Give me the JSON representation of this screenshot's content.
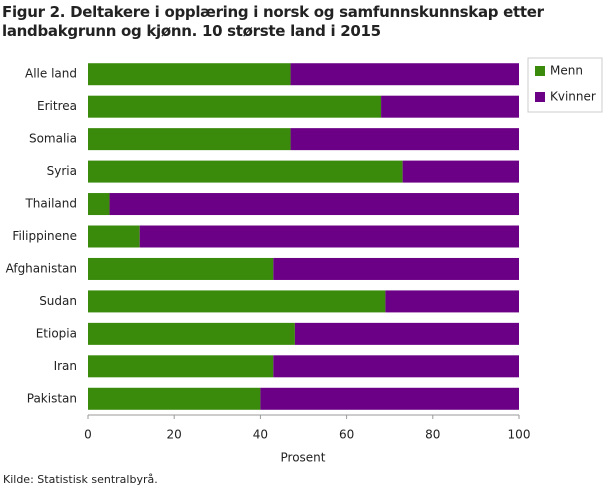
{
  "chart_data": {
    "type": "stacked_barh",
    "title": "Figur 2. Deltakere i opplæring i norsk og samfunnskunnskap etter landbakgrunn og kjønn. 10 største land i 2015",
    "categories": [
      "Alle land",
      "Eritrea",
      "Somalia",
      "Syria",
      "Thailand",
      "Filippinene",
      "Afghanistan",
      "Sudan",
      "Etiopia",
      "Iran",
      "Pakistan"
    ],
    "series": [
      {
        "name": "Menn",
        "color": "#3a8a0c",
        "values": [
          47,
          68,
          47,
          73,
          5,
          12,
          43,
          69,
          48,
          43,
          40
        ]
      },
      {
        "name": "Kvinner",
        "color": "#6b0086",
        "values": [
          53,
          32,
          53,
          27,
          95,
          88,
          57,
          31,
          52,
          57,
          60
        ]
      }
    ],
    "xlim": [
      0,
      100
    ],
    "xticks": [
      0,
      20,
      40,
      60,
      80,
      100
    ],
    "xlabel": "Prosent",
    "legend": "top-right",
    "grid": false,
    "source": "Kilde: Statistisk sentralbyrå."
  }
}
